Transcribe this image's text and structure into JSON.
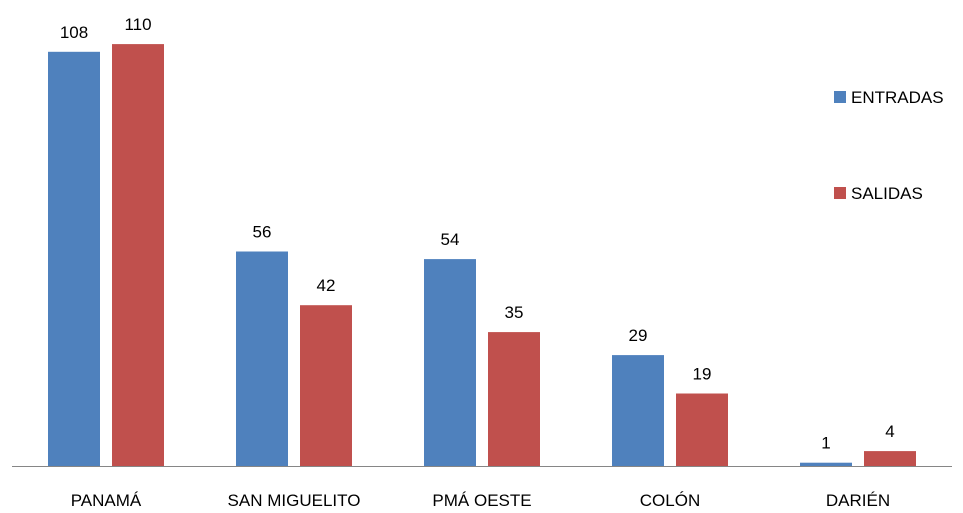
{
  "chart_data": {
    "type": "bar",
    "title": "",
    "xlabel": "",
    "ylabel": "",
    "categories": [
      "PANAMÁ",
      "SAN MIGUELITO",
      "PMÁ OESTE",
      "COLÓN",
      "DARIÉN"
    ],
    "series": [
      {
        "name": "ENTRADAS",
        "color": "#4f81bd",
        "values": [
          108,
          56,
          54,
          29,
          1
        ]
      },
      {
        "name": "SALIDAS",
        "color": "#c0504d",
        "values": [
          110,
          42,
          35,
          19,
          4
        ]
      }
    ],
    "ylim": [
      0,
      110
    ],
    "grid": false,
    "data_labels": true,
    "legend_position": "right"
  }
}
